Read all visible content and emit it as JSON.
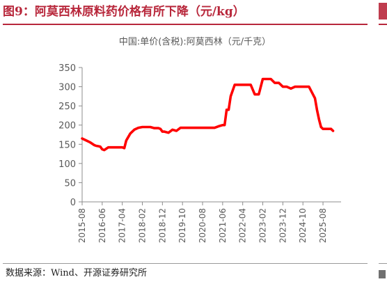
{
  "figure": {
    "title": "图9：阿莫西林原料药价格有所下降（元/kg）",
    "source": "数据来源：Wind、开源证券研究所"
  },
  "chart_data": {
    "type": "line",
    "title": "中国:单价(含税):阿莫西林（元/千克）",
    "xlabel": "",
    "ylabel": "",
    "ylim": [
      0,
      350
    ],
    "yticks": [
      0,
      50,
      100,
      150,
      200,
      250,
      300,
      350
    ],
    "xlim": [
      "2015-08",
      "2026-05"
    ],
    "xtick_labels": [
      "2015-08",
      "2016-06",
      "2017-04",
      "2018-02",
      "2018-12",
      "2019-10",
      "2020-08",
      "2021-06",
      "2022-04",
      "2023-02",
      "2023-12",
      "2024-10",
      "2025-08"
    ],
    "grid": false,
    "legend": "none",
    "series": [
      {
        "name": "",
        "color": "#ff0000",
        "x": [
          "2015-08",
          "2015-10",
          "2015-12",
          "2016-02",
          "2016-03",
          "2016-04",
          "2016-05",
          "2016-06",
          "2016-07",
          "2016-09",
          "2016-12",
          "2017-03",
          "2017-04",
          "2017-05",
          "2017-06",
          "2017-08",
          "2017-10",
          "2017-12",
          "2018-02",
          "2018-04",
          "2018-06",
          "2018-08",
          "2018-10",
          "2018-11",
          "2018-12",
          "2019-01",
          "2019-03",
          "2019-05",
          "2019-07",
          "2019-09",
          "2019-12",
          "2020-03",
          "2020-06",
          "2020-08",
          "2020-10",
          "2020-12",
          "2021-02",
          "2021-04",
          "2021-06",
          "2021-07",
          "2021-08",
          "2021-09",
          "2021-10",
          "2021-12",
          "2022-03",
          "2022-06",
          "2022-08",
          "2022-10",
          "2022-12",
          "2023-02",
          "2023-04",
          "2023-06",
          "2023-08",
          "2023-10",
          "2023-11",
          "2023-12",
          "2024-02",
          "2024-04",
          "2024-06",
          "2024-08",
          "2024-10",
          "2025-01",
          "2025-03",
          "2025-04",
          "2025-05",
          "2025-06",
          "2025-07",
          "2025-08",
          "2025-10",
          "2025-12",
          "2026-01"
        ],
        "values": [
          165,
          160,
          155,
          148,
          146,
          145,
          144,
          137,
          135,
          142,
          142,
          142,
          142,
          140,
          160,
          178,
          188,
          193,
          195,
          195,
          195,
          192,
          192,
          190,
          183,
          183,
          180,
          188,
          185,
          193,
          193,
          193,
          193,
          193,
          193,
          193,
          193,
          197,
          200,
          200,
          240,
          240,
          275,
          305,
          305,
          305,
          305,
          280,
          280,
          320,
          320,
          320,
          310,
          310,
          305,
          300,
          300,
          295,
          300,
          300,
          300,
          300,
          280,
          270,
          240,
          215,
          195,
          190,
          190,
          190,
          185
        ]
      }
    ]
  }
}
